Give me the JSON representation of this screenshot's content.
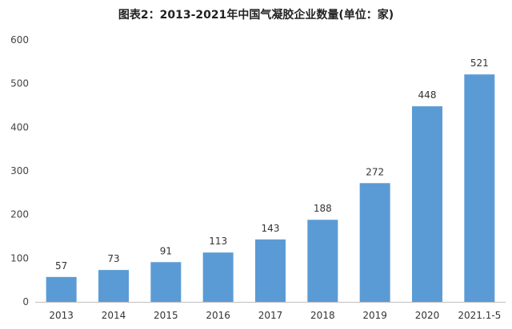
{
  "chart_data": {
    "type": "bar",
    "title": "图表2：2013-2021年中国气凝胶企业数量(单位：家)",
    "categories": [
      "2013",
      "2014",
      "2015",
      "2016",
      "2017",
      "2018",
      "2019",
      "2020",
      "2021.1-5"
    ],
    "values": [
      57,
      73,
      91,
      113,
      143,
      188,
      272,
      448,
      521
    ],
    "ylim": [
      0,
      600
    ],
    "yticks": [
      0,
      100,
      200,
      300,
      400,
      500,
      600
    ],
    "bar_color": "#5b9bd5",
    "data_labels": true,
    "grid": false,
    "legend": "none"
  }
}
